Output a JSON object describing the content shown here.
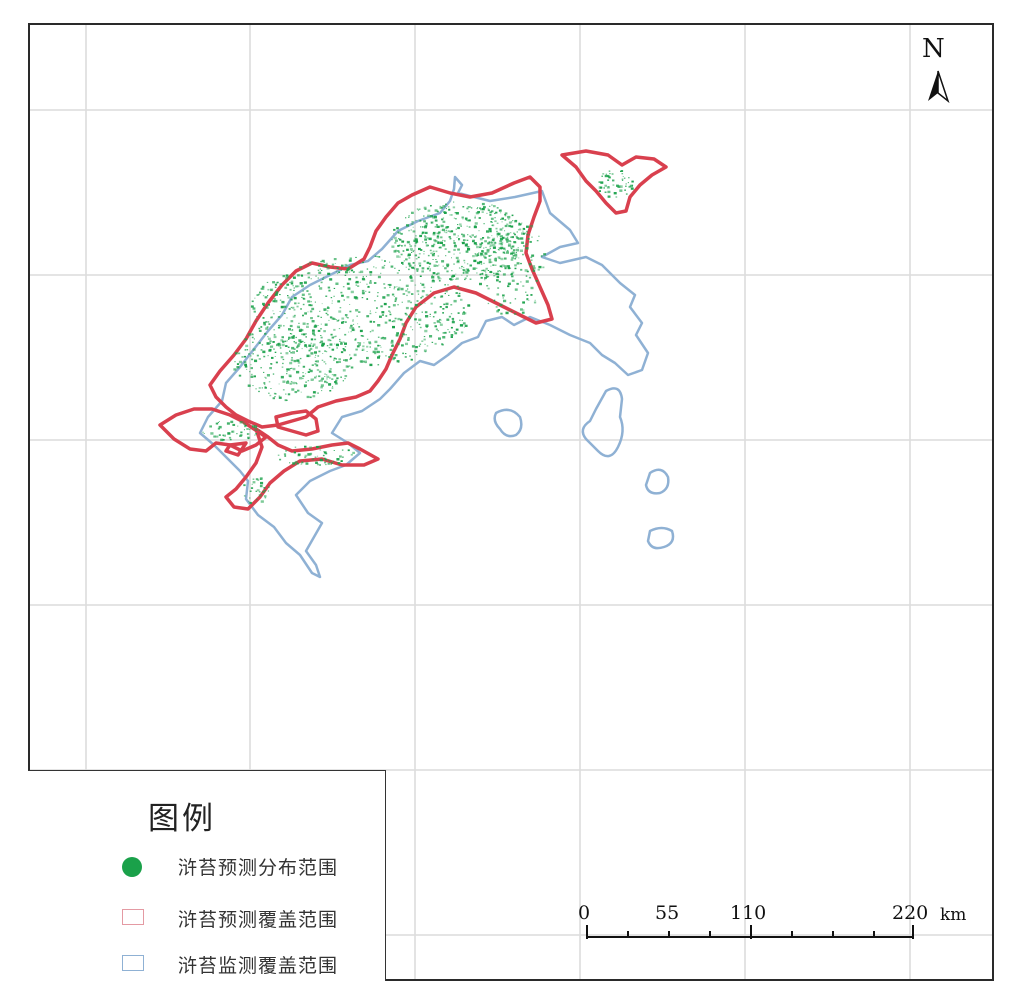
{
  "map": {
    "north_label": "N",
    "colors": {
      "distribution": "#1aa14a",
      "predicted_outline": "#d9404e",
      "monitored_outline": "#8fb1d4",
      "grid": "#dcdcdc"
    }
  },
  "legend": {
    "title": "图例",
    "items": [
      {
        "label": "浒苔预测分布范围",
        "symbol": "green-dot"
      },
      {
        "label": "浒苔预测覆盖范围",
        "symbol": "red-outline-box"
      },
      {
        "label": "浒苔监测覆盖范围",
        "symbol": "blue-outline-box"
      }
    ]
  },
  "scale_bar": {
    "ticks": [
      "0",
      "55",
      "110",
      "220"
    ],
    "unit": "km"
  }
}
